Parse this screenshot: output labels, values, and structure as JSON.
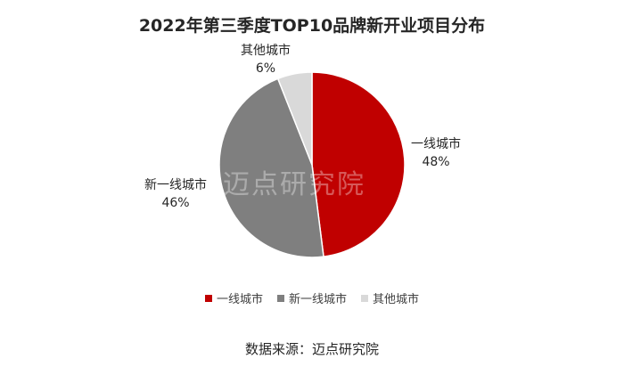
{
  "chart_data": {
    "type": "pie",
    "title": "2022年第三季度TOP10品牌新开业项目分布",
    "categories": [
      "一线城市",
      "新一线城市",
      "其他城市"
    ],
    "values": [
      48,
      46,
      6
    ],
    "value_labels": [
      "48%",
      "46%",
      "6%"
    ],
    "colors": [
      "#c00000",
      "#7f7f7f",
      "#d9d9d9"
    ],
    "legend": "bottom"
  },
  "source": "数据来源：迈点研究院",
  "watermark": "迈点研究院"
}
